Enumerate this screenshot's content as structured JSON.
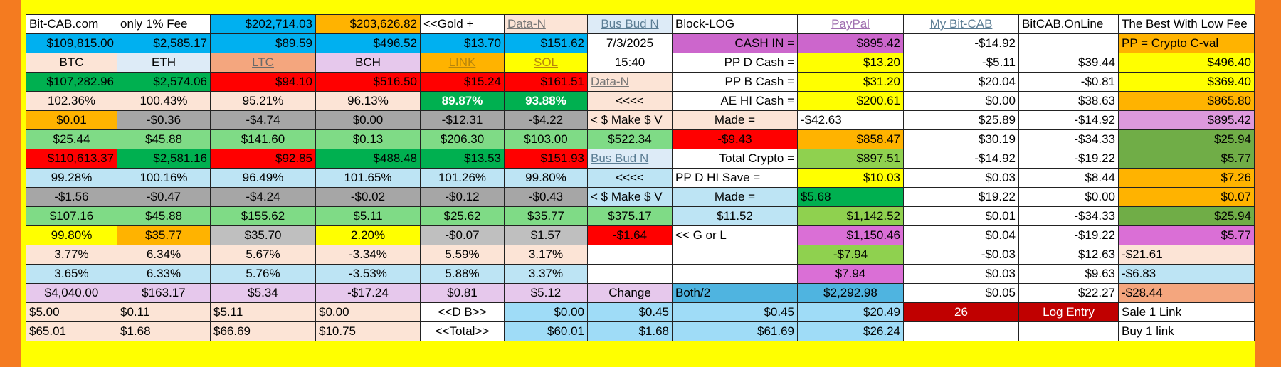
{
  "header": {
    "site": "Bit-CAB.com",
    "fee": "only 1% Fee",
    "val1": "$202,714.03",
    "val2": "$203,626.82",
    "gold": "<<Gold +",
    "data_n": "Data-N",
    "bus_bud_n": "Bus Bud N",
    "block_log": "Block-LOG",
    "paypal": "PayPal",
    "my_bitcab": "My Bit-CAB",
    "online": "BitCAB.OnLine",
    "best": "The Best With Low Fee"
  },
  "r2": [
    "$109,815.00",
    "$2,585.17",
    "$89.59",
    "$496.52",
    "$13.70",
    "$151.62",
    "7/3/2025",
    "CASH IN =",
    "$895.42",
    "-$14.92",
    "",
    "PP = Crypto C-val"
  ],
  "r3": [
    "BTC",
    "ETH",
    "LTC",
    "BCH",
    "LINK",
    "SOL",
    "15:40",
    "PP  D  Cash =",
    "$13.20",
    "-$5.11",
    "$39.44",
    "$496.40"
  ],
  "r4": [
    "$107,282.96",
    "$2,574.06",
    "$94.10",
    "$516.50",
    "$15.24",
    "$161.51",
    "Data-N",
    "PP  B  Cash =",
    "$31.20",
    "$20.04",
    "-$0.81",
    "$369.40"
  ],
  "r5": [
    "102.36%",
    "100.43%",
    "95.21%",
    "96.13%",
    "89.87%",
    "93.88%",
    "<<<<",
    "AE HI Cash =",
    "$200.61",
    "$0.00",
    "$38.63",
    "$865.80"
  ],
  "r6": [
    "$0.01",
    "-$0.36",
    "-$4.74",
    "$0.00",
    "-$12.31",
    "-$4.22",
    "< $ Make $ V",
    "Made =",
    "-$42.63",
    "$25.89",
    "-$14.92",
    "$895.42"
  ],
  "r7": [
    "$25.44",
    "$45.88",
    "$141.60",
    "$0.13",
    "$206.30",
    "$103.00",
    "$522.34",
    "-$9.43",
    "$858.47",
    "$30.19",
    "-$34.33",
    "$25.94"
  ],
  "r8": [
    "$110,613.37",
    "$2,581.16",
    "$92.85",
    "$488.48",
    "$13.53",
    "$151.93",
    "Bus Bud N",
    "Total Crypto =",
    "$897.51",
    "-$14.92",
    "-$19.22",
    "$5.77"
  ],
  "r9": [
    "99.28%",
    "100.16%",
    "96.49%",
    "101.65%",
    "101.26%",
    "99.80%",
    "<<<<",
    "PP D HI Save =",
    "$10.03",
    "$0.03",
    "$8.44",
    "$7.26"
  ],
  "r10": [
    "-$1.56",
    "-$0.47",
    "-$4.24",
    "-$0.02",
    "-$0.12",
    "-$0.43",
    "< $ Make $ V",
    "Made =",
    "$5.68",
    "$19.22",
    "$0.00",
    "$0.07"
  ],
  "r11": [
    "$107.16",
    "$45.88",
    "$155.62",
    "$5.11",
    "$25.62",
    "$35.77",
    "$375.17",
    "$11.52",
    "$1,142.52",
    "$0.01",
    "-$34.33",
    "$25.94"
  ],
  "r12": [
    "99.80%",
    "$35.77",
    "$35.70",
    "2.20%",
    "-$0.07",
    "$1.57",
    "-$1.64",
    "<< G or L",
    "$1,150.46",
    "$0.04",
    "-$19.22",
    "$5.77"
  ],
  "r13": [
    "3.77%",
    "6.34%",
    "5.67%",
    "-3.34%",
    "5.59%",
    "3.17%",
    "",
    "",
    "-$7.94",
    "-$0.03",
    "$12.63",
    "-$21.61"
  ],
  "r14": [
    "3.65%",
    "6.33%",
    "5.76%",
    "-3.53%",
    "5.88%",
    "3.37%",
    "",
    "",
    "$7.94",
    "$0.03",
    "$9.63",
    "-$6.83"
  ],
  "r15": [
    "$4,040.00",
    "$163.17",
    "$5.34",
    "-$17.24",
    "$0.81",
    "$5.12",
    "Change",
    "Both/2",
    "$2,292.98",
    "$0.05",
    "$22.27",
    "-$28.44"
  ],
  "r16": [
    "$5.00",
    "$0.11",
    "$5.11",
    "$0.00",
    "<<D  B>>",
    "$0.00",
    "$0.45",
    "$0.45",
    "$20.49",
    "26",
    "Log Entry",
    "Sale 1 Link"
  ],
  "r17": [
    "$65.01",
    "$1.68",
    "$66.69",
    "$10.75",
    "<<Total>>",
    "$60.01",
    "$1.68",
    "$61.69",
    "$26.24",
    "",
    "",
    "Buy 1 link"
  ]
}
